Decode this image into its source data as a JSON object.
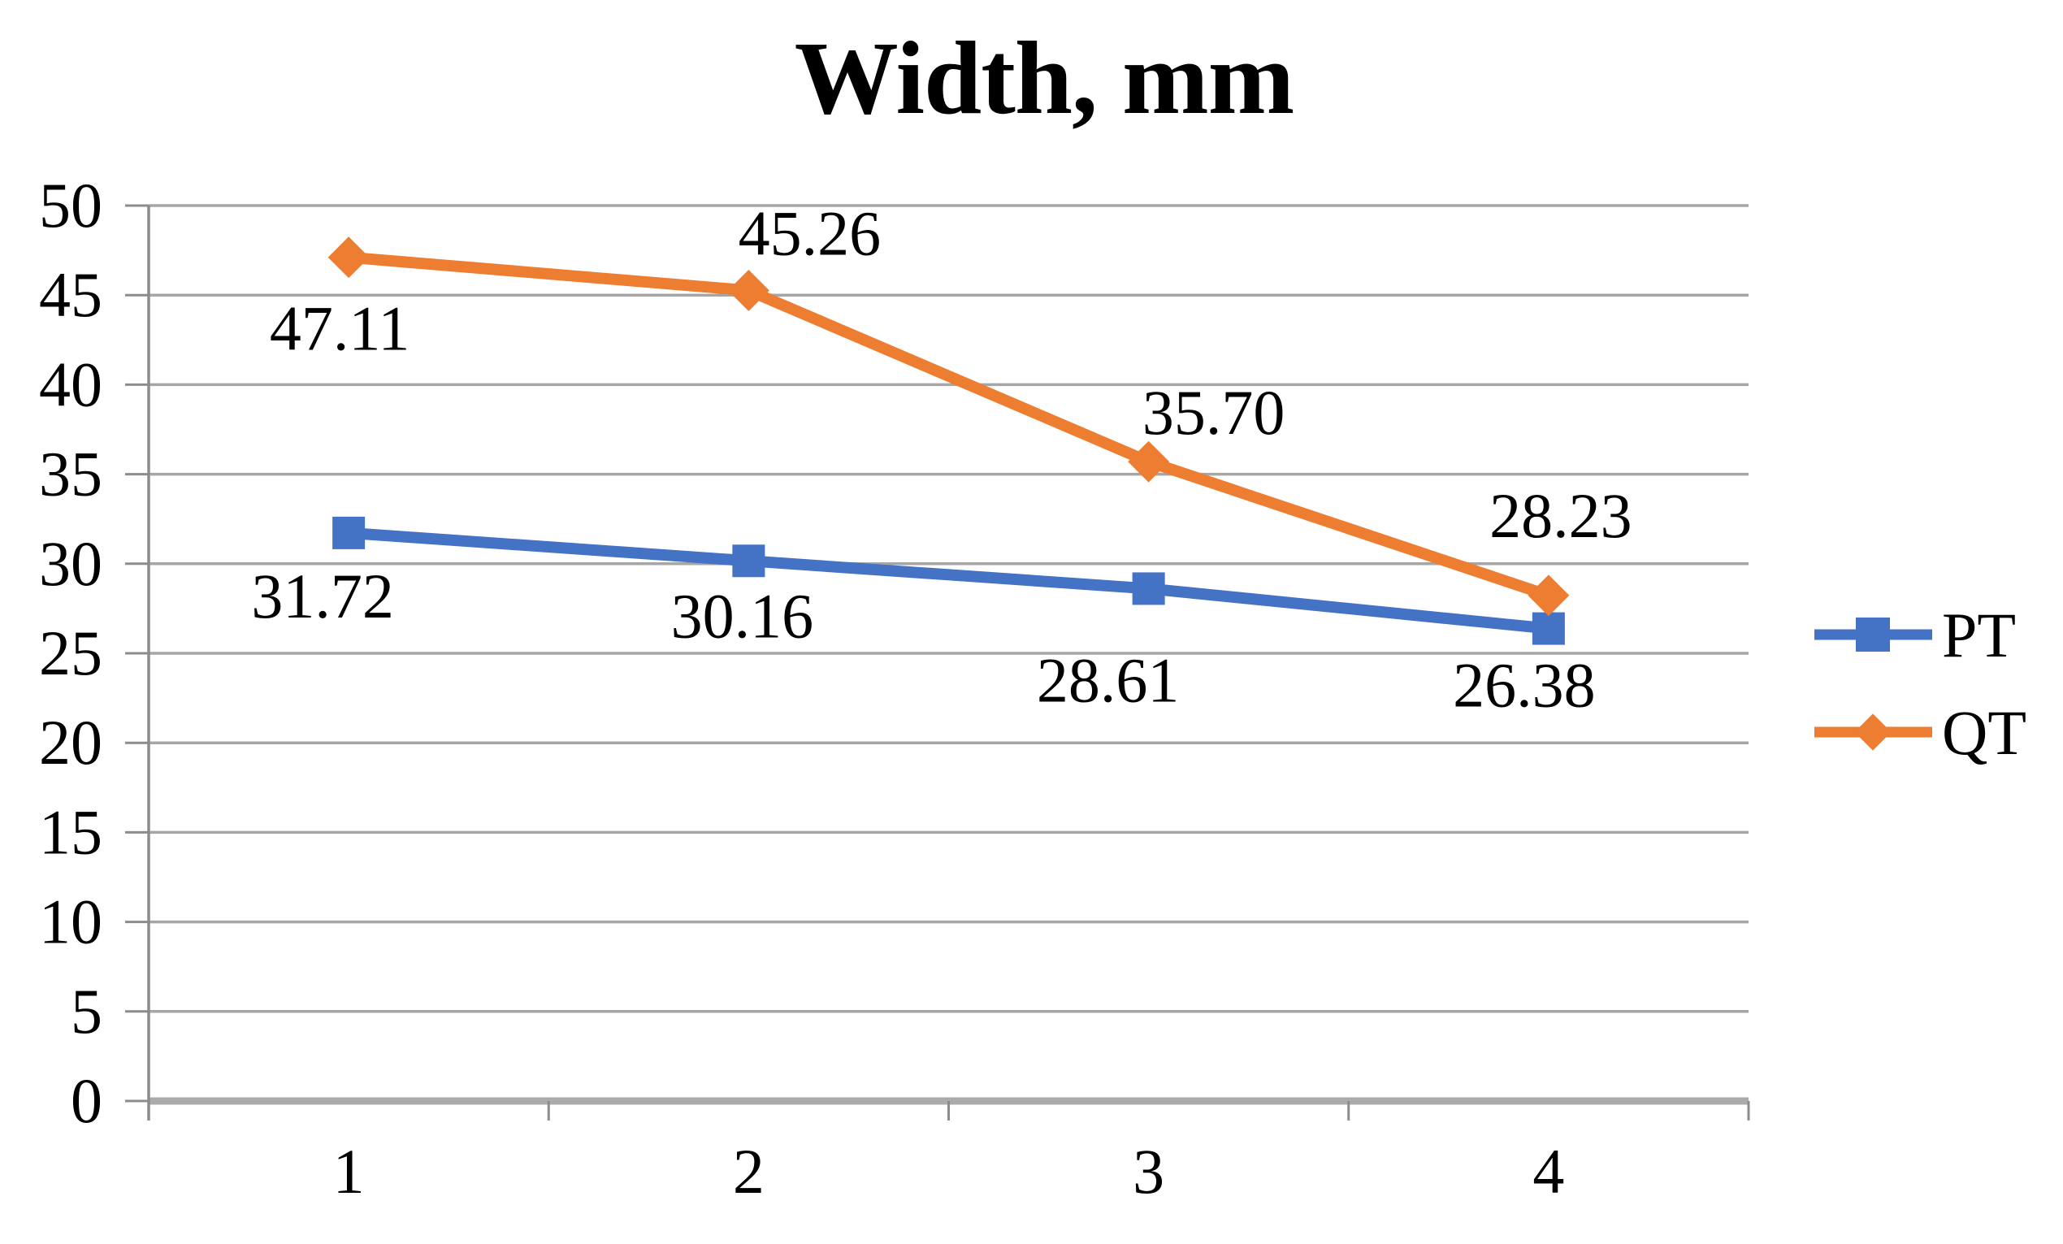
{
  "chart_data": {
    "type": "line",
    "title": "Width, mm",
    "categories": [
      "1",
      "2",
      "3",
      "4"
    ],
    "series": [
      {
        "name": "PT",
        "values": [
          31.72,
          30.16,
          28.61,
          26.38
        ],
        "labels": [
          "31.72",
          "30.16",
          "28.61",
          "26.38"
        ],
        "color": "#4472C4",
        "marker": "square"
      },
      {
        "name": "QT",
        "values": [
          47.11,
          45.26,
          35.7,
          28.23
        ],
        "labels": [
          "47.11",
          "45.26",
          "35.70",
          "28.23"
        ],
        "color": "#ED7D31",
        "marker": "diamond"
      }
    ],
    "xlabel": "",
    "ylabel": "",
    "ylim": [
      0,
      50
    ],
    "ytick_step": 5,
    "ytick_labels": [
      "0",
      "5",
      "10",
      "15",
      "20",
      "25",
      "30",
      "35",
      "40",
      "45",
      "50"
    ],
    "grid": true,
    "legend_position": "right",
    "colors": {
      "gridline": "#A6A6A6",
      "baseline": "#ABABAB",
      "axis": "#8C8C8C",
      "text": "#000000"
    }
  }
}
